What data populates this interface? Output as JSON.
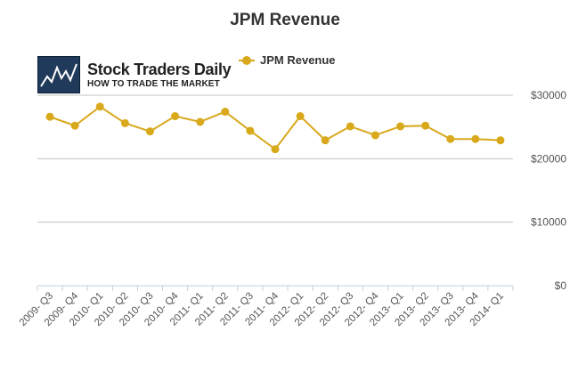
{
  "logo": {
    "name": "Stock Traders Daily",
    "tagline": "HOW TO TRADE THE MARKET",
    "colors": {
      "box": "#1f3a5a",
      "line": "#ffffff"
    }
  },
  "chart_data": {
    "type": "line",
    "title": "JPM Revenue",
    "xlabel": "",
    "ylabel": "",
    "categories": [
      "2009- Q3",
      "2009- Q4",
      "2010- Q1",
      "2010- Q2",
      "2010- Q3",
      "2010- Q4",
      "2011- Q1",
      "2011- Q2",
      "2011- Q3",
      "2011- Q4",
      "2012- Q1",
      "2012- Q2",
      "2012- Q3",
      "2012- Q4",
      "2013- Q1",
      "2013- Q2",
      "2013- Q3",
      "2013- Q4",
      "2014- Q1"
    ],
    "series": [
      {
        "name": "JPM Revenue",
        "color": "#d9a91c",
        "values": [
          26600,
          25200,
          28200,
          25600,
          24300,
          26700,
          25800,
          27400,
          24400,
          21500,
          26700,
          22900,
          25100,
          23700,
          25100,
          25200,
          23100,
          23100,
          22900
        ]
      }
    ],
    "ylim": [
      0,
      30000
    ],
    "yticks": [
      0,
      10000,
      20000,
      30000
    ],
    "ytick_labels": [
      "$0",
      "$10000",
      "$20000",
      "$30000"
    ],
    "grid": true,
    "legend": "top-center"
  }
}
